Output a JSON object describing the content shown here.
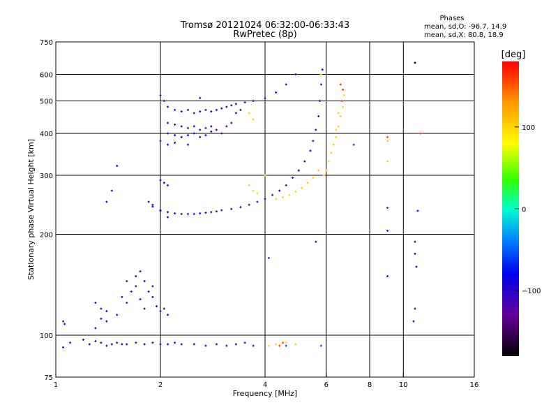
{
  "title": "Tromsø 20121024 06:32:00-06:33:43",
  "subtitle": "RwPretec (8p)",
  "stats": {
    "heading": "Phases",
    "line_o": "mean, sd,O: -96.7, 14.9",
    "line_x": "mean, sd,X: 80.8, 18.9"
  },
  "colorbar": {
    "unit": "[deg]",
    "range": [
      -180,
      180
    ],
    "tick_labels": [
      "100",
      "0",
      "−100"
    ],
    "tick_values": [
      100,
      0,
      -100
    ]
  },
  "chart_data": {
    "type": "scatter",
    "title": "Tromsø 20121024 06:32:00-06:33:43",
    "subtitle": "RwPretec (8p)",
    "xlabel": "Frequency [MHz]",
    "ylabel": "Stationary phase Virtual Height [km]",
    "xscale": "log",
    "yscale": "log",
    "xlim": [
      1,
      16
    ],
    "ylim": [
      75,
      750
    ],
    "grid": true,
    "x_ticks": [
      1,
      2,
      4,
      6,
      8,
      10,
      16
    ],
    "x_tick_labels": [
      "1",
      "2",
      "4",
      "6",
      "8",
      "10",
      "16"
    ],
    "y_ticks": [
      75,
      100,
      200,
      300,
      400,
      500,
      600,
      750
    ],
    "y_tick_labels": [
      "75",
      "100",
      "200",
      "300",
      "400",
      "500",
      "600",
      "750"
    ],
    "x_gridlines": [
      2,
      4,
      6,
      8,
      10
    ],
    "y_gridlines": [
      100,
      200,
      300,
      400,
      500,
      600
    ],
    "colormap": {
      "variable": "phase",
      "unit": "deg",
      "range": [
        -180,
        180
      ]
    },
    "series": [
      {
        "phase": -100,
        "points": [
          [
            1.05,
            110
          ],
          [
            1.06,
            108
          ],
          [
            1.05,
            92
          ],
          [
            1.1,
            95
          ],
          [
            1.2,
            97
          ],
          [
            1.25,
            94
          ],
          [
            1.3,
            96
          ],
          [
            1.35,
            95
          ],
          [
            1.4,
            93
          ],
          [
            1.45,
            94
          ],
          [
            1.5,
            95
          ],
          [
            1.55,
            94
          ],
          [
            1.6,
            94
          ],
          [
            1.7,
            95
          ],
          [
            1.8,
            94
          ],
          [
            1.9,
            95
          ],
          [
            2.0,
            94
          ],
          [
            2.1,
            94
          ],
          [
            2.2,
            95
          ],
          [
            2.3,
            94
          ],
          [
            2.5,
            94
          ],
          [
            2.7,
            93
          ],
          [
            2.9,
            94
          ],
          [
            3.1,
            93
          ],
          [
            3.3,
            94
          ],
          [
            3.5,
            95
          ],
          [
            3.7,
            93
          ],
          [
            1.3,
            125
          ],
          [
            1.35,
            120
          ],
          [
            1.4,
            118
          ],
          [
            1.3,
            105
          ],
          [
            1.35,
            112
          ],
          [
            1.4,
            110
          ],
          [
            1.5,
            115
          ],
          [
            1.55,
            130
          ],
          [
            1.6,
            125
          ],
          [
            1.65,
            135
          ],
          [
            1.7,
            140
          ],
          [
            1.75,
            128
          ],
          [
            1.8,
            120
          ],
          [
            1.85,
            135
          ],
          [
            1.9,
            130
          ],
          [
            1.95,
            122
          ],
          [
            2.0,
            118
          ],
          [
            2.05,
            120
          ],
          [
            2.1,
            115
          ],
          [
            1.6,
            145
          ],
          [
            1.7,
            150
          ],
          [
            1.75,
            155
          ],
          [
            1.8,
            145
          ],
          [
            1.9,
            140
          ],
          [
            1.4,
            250
          ],
          [
            1.45,
            270
          ],
          [
            1.5,
            320
          ],
          [
            1.85,
            250
          ],
          [
            1.9,
            242
          ],
          [
            2.0,
            236
          ],
          [
            2.1,
            233
          ],
          [
            2.2,
            231
          ],
          [
            2.3,
            230
          ],
          [
            2.4,
            230
          ],
          [
            2.5,
            230
          ],
          [
            2.6,
            231
          ],
          [
            2.7,
            232
          ],
          [
            2.8,
            233
          ],
          [
            2.9,
            234
          ],
          [
            3.0,
            236
          ],
          [
            3.2,
            238
          ],
          [
            3.4,
            241
          ],
          [
            3.6,
            245
          ],
          [
            3.8,
            250
          ],
          [
            4.0,
            255
          ],
          [
            4.2,
            262
          ],
          [
            4.4,
            270
          ],
          [
            4.6,
            280
          ],
          [
            4.8,
            295
          ],
          [
            5.0,
            310
          ],
          [
            5.2,
            330
          ],
          [
            5.4,
            355
          ],
          [
            5.5,
            380
          ],
          [
            5.6,
            410
          ],
          [
            5.7,
            450
          ],
          [
            5.75,
            500
          ],
          [
            5.8,
            560
          ],
          [
            5.85,
            620
          ],
          [
            2.0,
            520
          ],
          [
            2.05,
            500
          ],
          [
            2.1,
            480
          ],
          [
            2.2,
            470
          ],
          [
            2.3,
            465
          ],
          [
            2.4,
            470
          ],
          [
            2.5,
            460
          ],
          [
            2.6,
            465
          ],
          [
            2.7,
            470
          ],
          [
            2.8,
            465
          ],
          [
            2.9,
            470
          ],
          [
            3.0,
            475
          ],
          [
            3.1,
            480
          ],
          [
            3.2,
            485
          ],
          [
            3.3,
            490
          ],
          [
            3.5,
            495
          ],
          [
            3.7,
            500
          ],
          [
            4.0,
            510
          ],
          [
            4.3,
            530
          ],
          [
            4.6,
            560
          ],
          [
            4.9,
            600
          ],
          [
            2.1,
            430
          ],
          [
            2.2,
            425
          ],
          [
            2.3,
            420
          ],
          [
            2.4,
            415
          ],
          [
            2.5,
            420
          ],
          [
            2.6,
            410
          ],
          [
            2.7,
            415
          ],
          [
            2.8,
            420
          ],
          [
            2.1,
            400
          ],
          [
            2.2,
            395
          ],
          [
            2.3,
            390
          ],
          [
            2.4,
            395
          ],
          [
            2.5,
            400
          ],
          [
            2.6,
            390
          ],
          [
            2.7,
            395
          ],
          [
            2.8,
            405
          ],
          [
            2.0,
            380
          ],
          [
            2.1,
            370
          ],
          [
            2.2,
            375
          ],
          [
            2.4,
            370
          ],
          [
            2.0,
            290
          ],
          [
            2.05,
            285
          ],
          [
            2.1,
            280
          ],
          [
            2.1,
            225
          ],
          [
            2.0,
            235
          ],
          [
            1.9,
            245
          ],
          [
            9.0,
            205
          ],
          [
            9.0,
            150
          ],
          [
            10.8,
            190
          ],
          [
            10.8,
            175
          ],
          [
            10.9,
            160
          ],
          [
            10.8,
            120
          ],
          [
            10.7,
            110
          ],
          [
            11.0,
            235
          ],
          [
            5.6,
            190
          ],
          [
            2.6,
            510
          ]
        ]
      },
      {
        "phase": -140,
        "points": [
          [
            2.9,
            410
          ],
          [
            3.0,
            400
          ],
          [
            3.1,
            420
          ],
          [
            3.2,
            430
          ],
          [
            3.3,
            460
          ],
          [
            3.4,
            470
          ]
        ]
      },
      {
        "phase": 100,
        "points": [
          [
            3.6,
            280
          ],
          [
            3.7,
            270
          ],
          [
            3.8,
            265
          ],
          [
            4.0,
            300
          ],
          [
            4.3,
            255
          ],
          [
            4.5,
            258
          ],
          [
            4.7,
            262
          ],
          [
            4.9,
            268
          ],
          [
            5.1,
            275
          ],
          [
            5.3,
            285
          ],
          [
            5.5,
            295
          ],
          [
            5.7,
            310
          ],
          [
            5.9,
            300
          ],
          [
            6.0,
            310
          ],
          [
            6.1,
            330
          ],
          [
            6.2,
            350
          ],
          [
            6.3,
            370
          ],
          [
            6.4,
            390
          ],
          [
            6.5,
            420
          ],
          [
            6.6,
            450
          ],
          [
            6.7,
            480
          ],
          [
            6.75,
            520
          ],
          [
            6.5,
            460
          ],
          [
            6.4,
            410
          ],
          [
            5.8,
            600
          ],
          [
            3.6,
            460
          ],
          [
            3.7,
            440
          ],
          [
            4.1,
            93
          ],
          [
            4.3,
            94
          ],
          [
            4.6,
            95
          ],
          [
            4.9,
            94
          ],
          [
            9.0,
            330
          ],
          [
            9.0,
            380
          ]
        ]
      },
      {
        "phase": 160,
        "points": [
          [
            4.4,
            93
          ],
          [
            4.5,
            95
          ],
          [
            6.6,
            560
          ],
          [
            6.7,
            540
          ],
          [
            6.65,
            500
          ],
          [
            9.0,
            390
          ],
          [
            11.2,
            400
          ]
        ]
      },
      {
        "phase": -180,
        "points": [
          [
            10.8,
            650
          ]
        ]
      },
      {
        "phase": -60,
        "points": [
          [
            4.1,
            170
          ],
          [
            4.6,
            93
          ],
          [
            5.8,
            93
          ],
          [
            7.2,
            370
          ],
          [
            9.0,
            240
          ],
          [
            2.0,
            380
          ]
        ]
      }
    ]
  }
}
